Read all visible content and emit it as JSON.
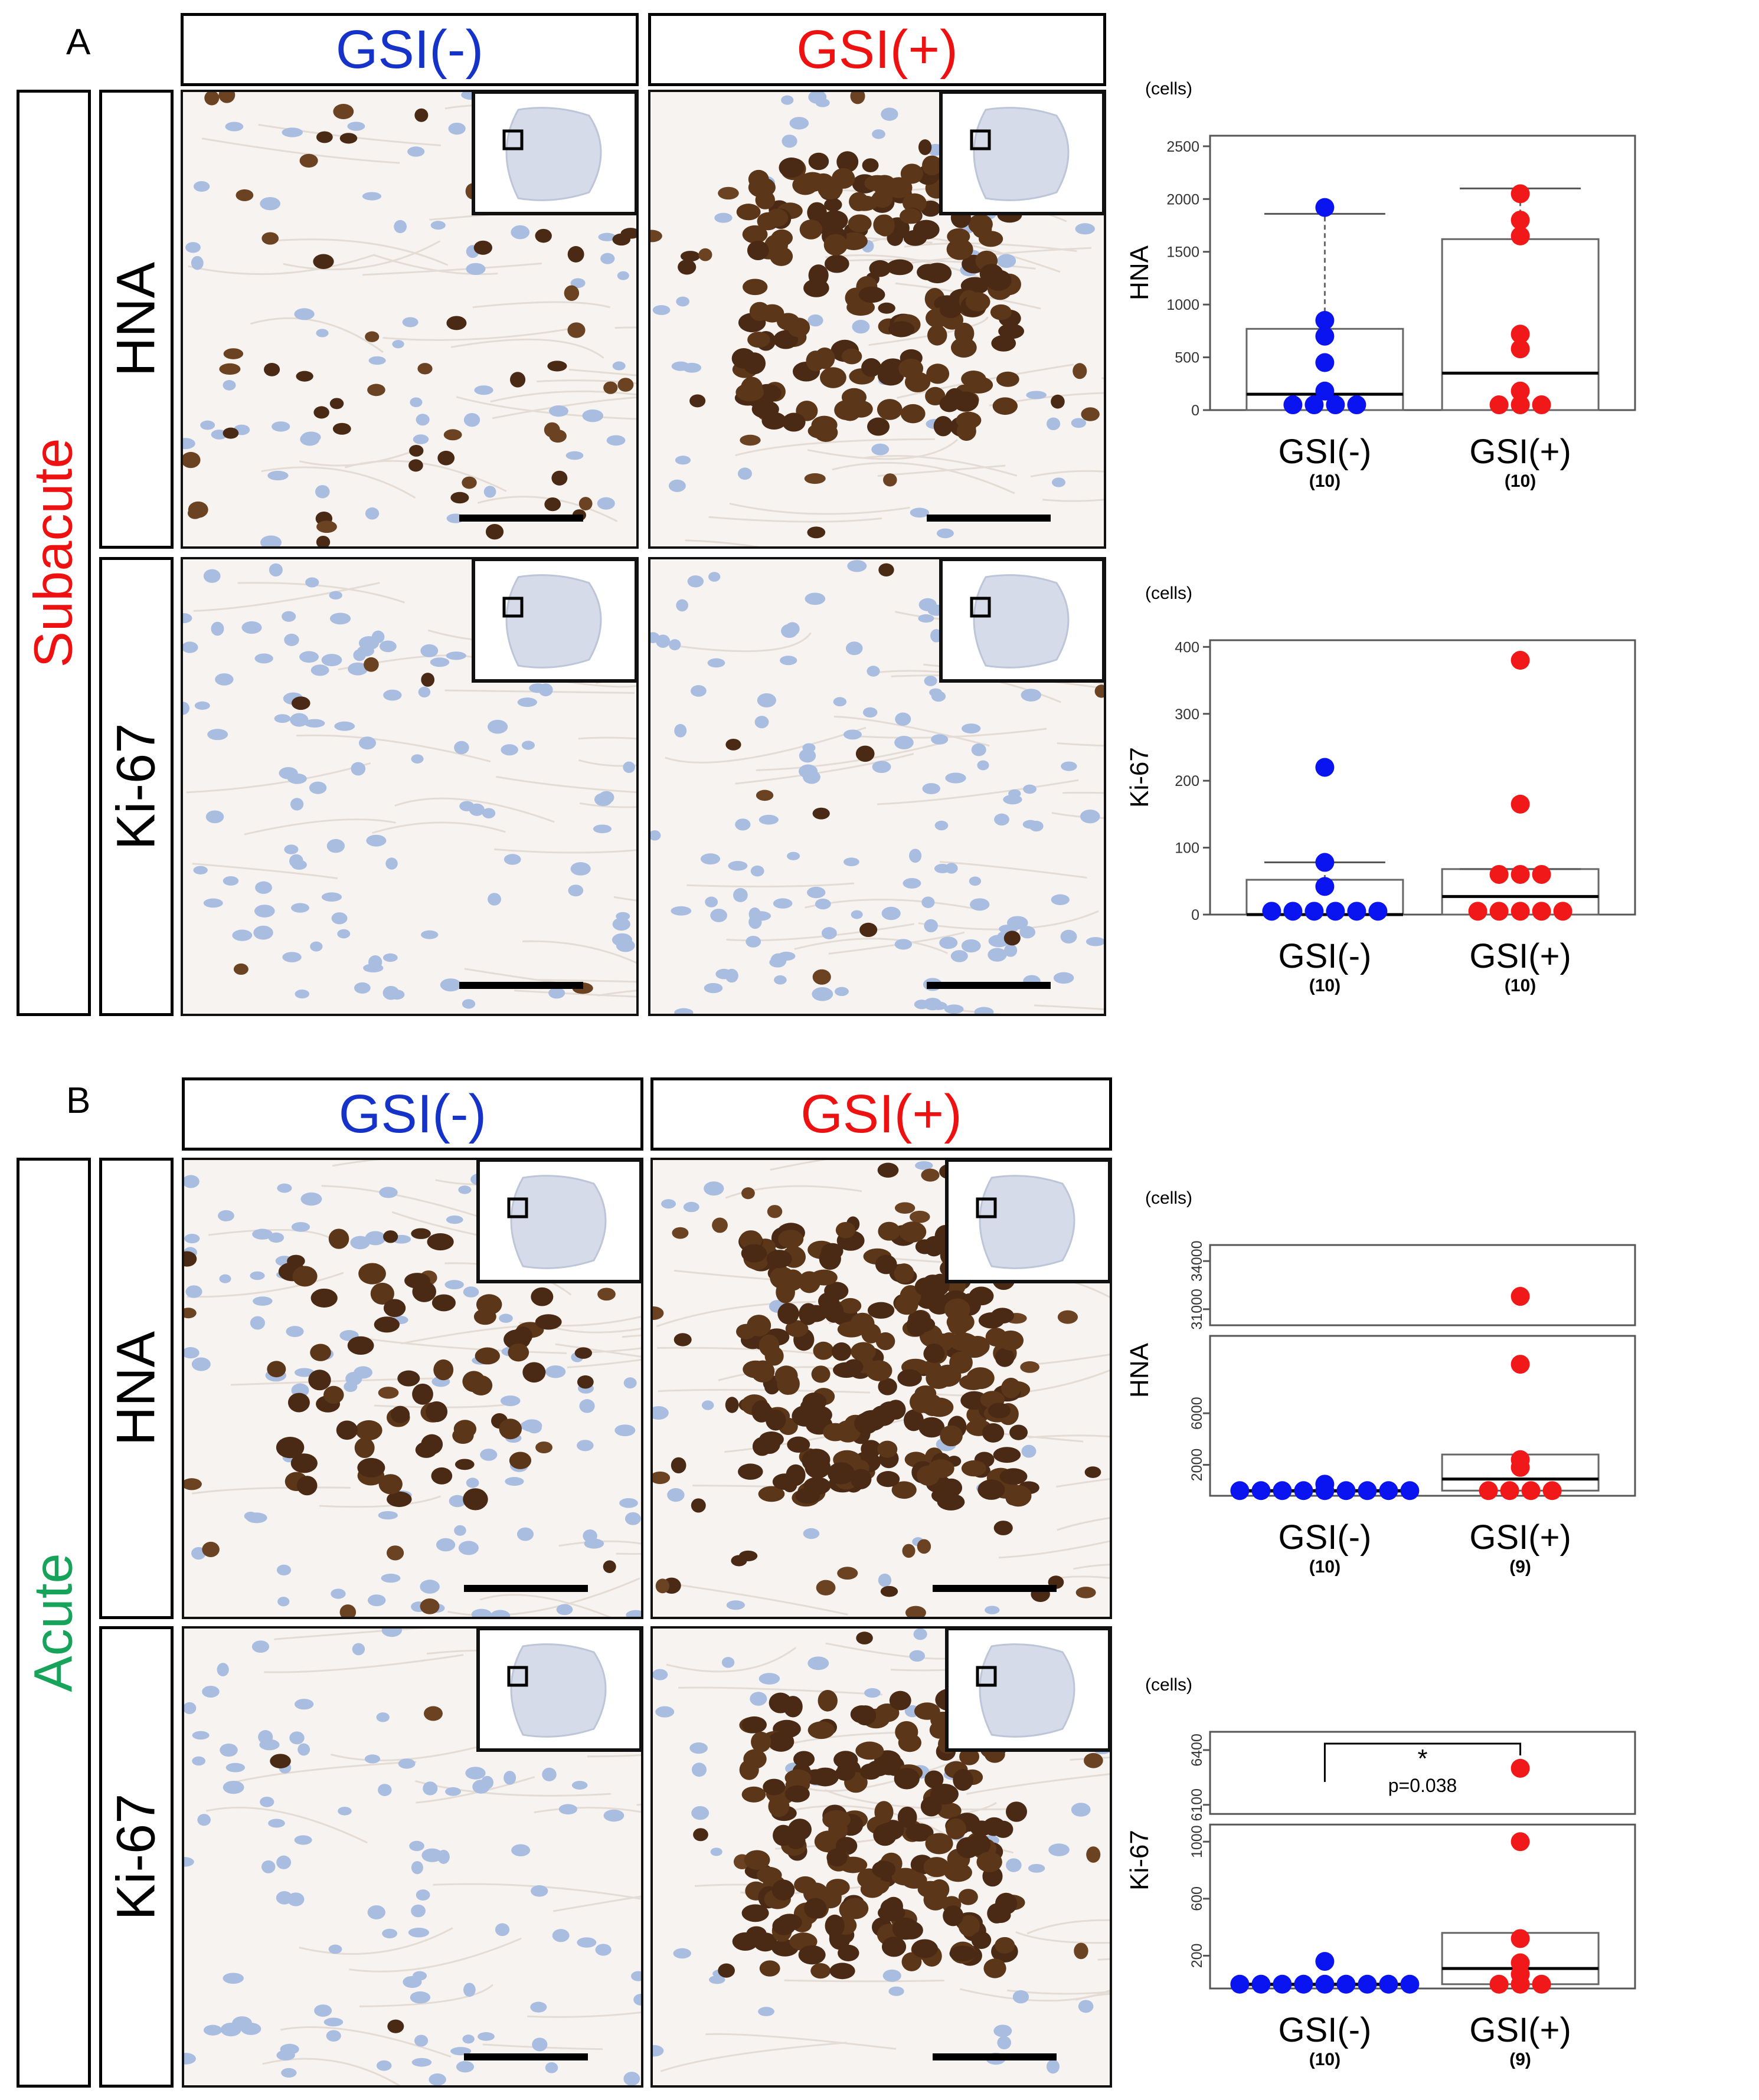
{
  "colors": {
    "neg": "#1533c8",
    "pos": "#ee1111",
    "subacute": "#ee1111",
    "acute": "#17a45a",
    "neg_dot": "#0a14f0",
    "pos_dot": "#f01818"
  },
  "icons": {
    "brain_inset": "brain-section-inset-icon",
    "scale_bar": "scale-bar"
  },
  "panels": [
    {
      "letter": "A",
      "condition": "Subacute",
      "headers": [
        "GSI(-)",
        "GSI(+)"
      ],
      "rows": [
        "HNA",
        "Ki-67"
      ]
    },
    {
      "letter": "B",
      "condition": "Acute",
      "headers": [
        "GSI(-)",
        "GSI(+)"
      ],
      "rows": [
        "HNA",
        "Ki-67"
      ]
    }
  ],
  "chart_data": [
    {
      "id": "A-HNA",
      "type": "box+strip",
      "ylabel": "HNA",
      "unit": "(cells)",
      "categories": [
        "GSI(-)",
        "GSI(+)"
      ],
      "n": [
        "(10)",
        "(10)"
      ],
      "ylim": [
        0,
        2600
      ],
      "yticks": [
        0,
        500,
        1000,
        1500,
        2000,
        2500
      ],
      "series": [
        {
          "name": "GSI(-)",
          "points": [
            50,
            50,
            50,
            50,
            180,
            450,
            700,
            850,
            1920
          ],
          "box": {
            "q1": 0,
            "median": 150,
            "q3": 770,
            "whisker_hi": 1860
          }
        },
        {
          "name": "GSI(+)",
          "points": [
            50,
            50,
            50,
            180,
            580,
            720,
            1650,
            1800,
            2050
          ],
          "box": {
            "q1": 0,
            "median": 350,
            "q3": 1620,
            "whisker_hi": 2100
          }
        }
      ]
    },
    {
      "id": "A-Ki67",
      "type": "box+strip",
      "ylabel": "Ki-67",
      "unit": "(cells)",
      "categories": [
        "GSI(-)",
        "GSI(+)"
      ],
      "n": [
        "(10)",
        "(10)"
      ],
      "ylim": [
        0,
        410
      ],
      "yticks": [
        0,
        100,
        200,
        300,
        400
      ],
      "series": [
        {
          "name": "GSI(-)",
          "points": [
            5,
            5,
            5,
            5,
            5,
            5,
            42,
            78,
            220
          ],
          "box": {
            "q1": 0,
            "median": 0,
            "q3": 52,
            "whisker_hi": 78
          }
        },
        {
          "name": "GSI(+)",
          "points": [
            5,
            5,
            5,
            5,
            5,
            60,
            60,
            60,
            165,
            380
          ],
          "box": {
            "q1": 0,
            "median": 27,
            "q3": 68,
            "whisker_hi": 68
          }
        }
      ]
    },
    {
      "id": "B-HNA",
      "type": "box+strip",
      "ylabel": "HNA",
      "unit": "(cells)",
      "categories": [
        "GSI(-)",
        "GSI(+)"
      ],
      "n": [
        "(10)",
        "(9)"
      ],
      "broken_axis": true,
      "lower_ylim": [
        -400,
        12000
      ],
      "lower_yticks": [
        2000,
        6000
      ],
      "upper_ylim": [
        30000,
        35000
      ],
      "upper_yticks": [
        31000,
        34000
      ],
      "series": [
        {
          "name": "GSI(-)",
          "points": [
            0,
            0,
            0,
            0,
            0,
            0,
            0,
            0,
            0,
            500
          ],
          "box": {
            "q1": 0,
            "median": 0,
            "q3": 0
          }
        },
        {
          "name": "GSI(+)",
          "points": [
            0,
            0,
            0,
            0,
            1800,
            2400,
            9800,
            31800
          ],
          "box": {
            "q1": 0,
            "median": 900,
            "q3": 2800
          }
        }
      ]
    },
    {
      "id": "B-Ki67",
      "type": "box+strip",
      "ylabel": "Ki-67",
      "unit": "(cells)",
      "categories": [
        "GSI(-)",
        "GSI(+)"
      ],
      "n": [
        "(10)",
        "(9)"
      ],
      "broken_axis": true,
      "lower_ylim": [
        -30,
        1120
      ],
      "lower_yticks": [
        200,
        600,
        1000
      ],
      "upper_ylim": [
        6050,
        6500
      ],
      "upper_yticks": [
        6100,
        6400
      ],
      "significance": {
        "star": "*",
        "p": "p=0.038"
      },
      "series": [
        {
          "name": "GSI(-)",
          "points": [
            0,
            0,
            0,
            0,
            0,
            0,
            0,
            0,
            0,
            160
          ],
          "box": {
            "q1": 0,
            "median": 0,
            "q3": 0
          }
        },
        {
          "name": "GSI(+)",
          "points": [
            0,
            0,
            0,
            70,
            150,
            320,
            1000,
            6300
          ],
          "box": {
            "q1": 0,
            "median": 110,
            "q3": 360
          }
        }
      ]
    }
  ]
}
